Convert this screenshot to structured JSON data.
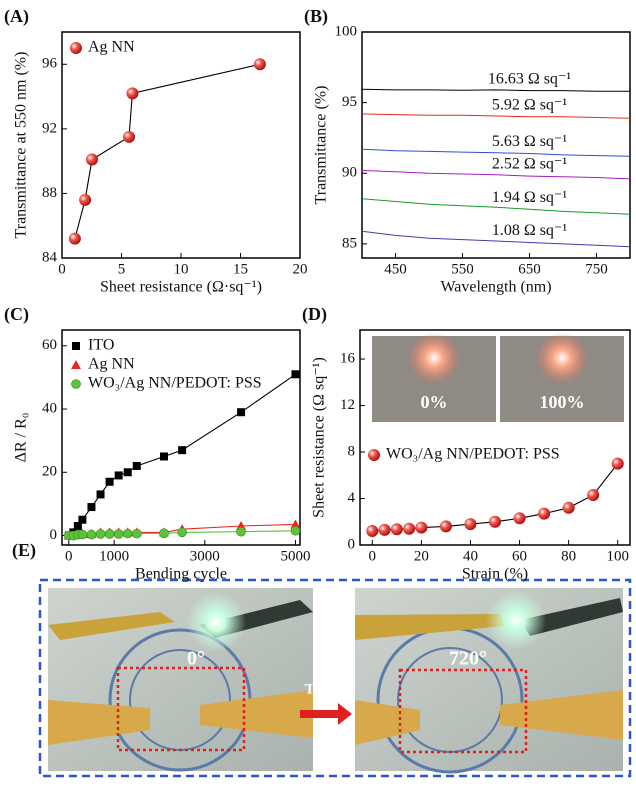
{
  "chart_data": [
    {
      "type": "scatter",
      "label": "(A)",
      "x_label": "Sheet resistance (Ω·sq⁻¹)",
      "y_label": "Transmittance at 550 nm (%)",
      "xlim": [
        0,
        20
      ],
      "xticks": [
        0,
        5,
        10,
        15,
        20
      ],
      "ylim": [
        84,
        98
      ],
      "yticks": [
        84,
        88,
        92,
        96
      ],
      "legend": "upper left",
      "line_color": "#000000",
      "series": [
        {
          "name": "Ag NN",
          "color": "#e8281e",
          "marker": "circle",
          "x": [
            1.08,
            1.94,
            2.52,
            5.63,
            5.92,
            16.63
          ],
          "values": [
            85.2,
            87.6,
            90.1,
            91.5,
            94.2,
            96.0
          ]
        }
      ]
    },
    {
      "type": "line",
      "label": "(B)",
      "x_label": "Wavelength (nm)",
      "y_label": "Transmittance (%)",
      "xlim": [
        400,
        800
      ],
      "xticks": [
        450,
        550,
        650,
        750
      ],
      "ylim": [
        84,
        100
      ],
      "yticks": [
        85,
        90,
        95,
        100
      ],
      "x": [
        400,
        450,
        500,
        550,
        600,
        650,
        700,
        750,
        800
      ],
      "series": [
        {
          "name": "16.63  Ω sq⁻¹",
          "color": "#000000",
          "values": [
            95.95,
            95.9,
            95.9,
            95.88,
            95.9,
            95.85,
            95.85,
            95.8,
            95.8
          ]
        },
        {
          "name": "5.92 Ω sq⁻¹",
          "color": "#e8281e",
          "values": [
            94.2,
            94.15,
            94.1,
            94.1,
            94.05,
            94.0,
            94.0,
            93.95,
            93.9
          ]
        },
        {
          "name": "5.63 Ω sq⁻¹",
          "color": "#2a4fd8",
          "values": [
            91.7,
            91.6,
            91.55,
            91.5,
            91.45,
            91.4,
            91.3,
            91.25,
            91.2
          ]
        },
        {
          "name": "2.52 Ω sq⁻¹",
          "color": "#a020c0",
          "values": [
            90.2,
            90.1,
            90.0,
            89.95,
            89.9,
            89.8,
            89.75,
            89.7,
            89.6
          ]
        },
        {
          "name": "1.94 Ω sq⁻¹",
          "color": "#1a9a2a",
          "values": [
            88.2,
            88.0,
            87.8,
            87.7,
            87.6,
            87.45,
            87.3,
            87.2,
            87.1
          ]
        },
        {
          "name": "1.08 Ω sq⁻¹",
          "color": "#4a3aa8",
          "values": [
            85.9,
            85.6,
            85.4,
            85.3,
            85.2,
            85.1,
            85.0,
            84.9,
            84.8
          ]
        }
      ]
    },
    {
      "type": "scatter",
      "label": "(C)",
      "x_label": "Bending cycle",
      "y_label": "ΔR / R₀",
      "xlim": [
        -150,
        5100
      ],
      "xticks": [
        0,
        1000,
        3000,
        5000
      ],
      "ylim": [
        -3,
        65
      ],
      "yticks": [
        0,
        20,
        40,
        60
      ],
      "legend": "upper left",
      "x": [
        0,
        100,
        200,
        300,
        500,
        700,
        900,
        1100,
        1300,
        1500,
        2100,
        2500,
        3800,
        5000
      ],
      "series": [
        {
          "name": "ITO",
          "color": "#000000",
          "marker": "square",
          "values": [
            0,
            1,
            3,
            5,
            9,
            13,
            17,
            19,
            20,
            22,
            25,
            27,
            39,
            51
          ]
        },
        {
          "name": "Ag NN",
          "color": "#e8281e",
          "marker": "triangle",
          "values": [
            0,
            0,
            0.5,
            0.5,
            0.5,
            1,
            1,
            1,
            1,
            1,
            1,
            2,
            3,
            3.5
          ]
        },
        {
          "name": "WO₃/Ag NN/PEDOT: PSS",
          "color": "#5cc23a",
          "marker": "circle",
          "values": [
            0,
            0,
            0.3,
            0.3,
            0.3,
            0.5,
            0.5,
            0.5,
            0.6,
            0.6,
            0.7,
            1,
            1.2,
            1.5
          ]
        }
      ]
    },
    {
      "type": "scatter",
      "label": "(D)",
      "x_label": "Strain (%)",
      "y_label": "Sheet resistance (Ω sq⁻¹)",
      "xlim": [
        -5,
        105
      ],
      "xticks": [
        0,
        20,
        40,
        60,
        80,
        100
      ],
      "ylim": [
        0,
        18.5
      ],
      "yticks": [
        0,
        4,
        8,
        12,
        16
      ],
      "legend": "center left",
      "line_color": "#000000",
      "annotations": [
        "0%",
        "100%"
      ],
      "series": [
        {
          "name": "WO₃/Ag NN/PEDOT: PSS",
          "color": "#e8281e",
          "marker": "circle",
          "x": [
            0,
            5,
            10,
            15,
            20,
            30,
            40,
            50,
            60,
            70,
            80,
            90,
            100
          ],
          "values": [
            1.2,
            1.3,
            1.35,
            1.4,
            1.5,
            1.6,
            1.8,
            2.0,
            2.3,
            2.7,
            3.2,
            4.3,
            7.0
          ]
        }
      ]
    }
  ],
  "photo_panel": {
    "label": "(E)",
    "left_angle": "0°",
    "arrow_text": "Twist",
    "right_angle": "720°"
  }
}
